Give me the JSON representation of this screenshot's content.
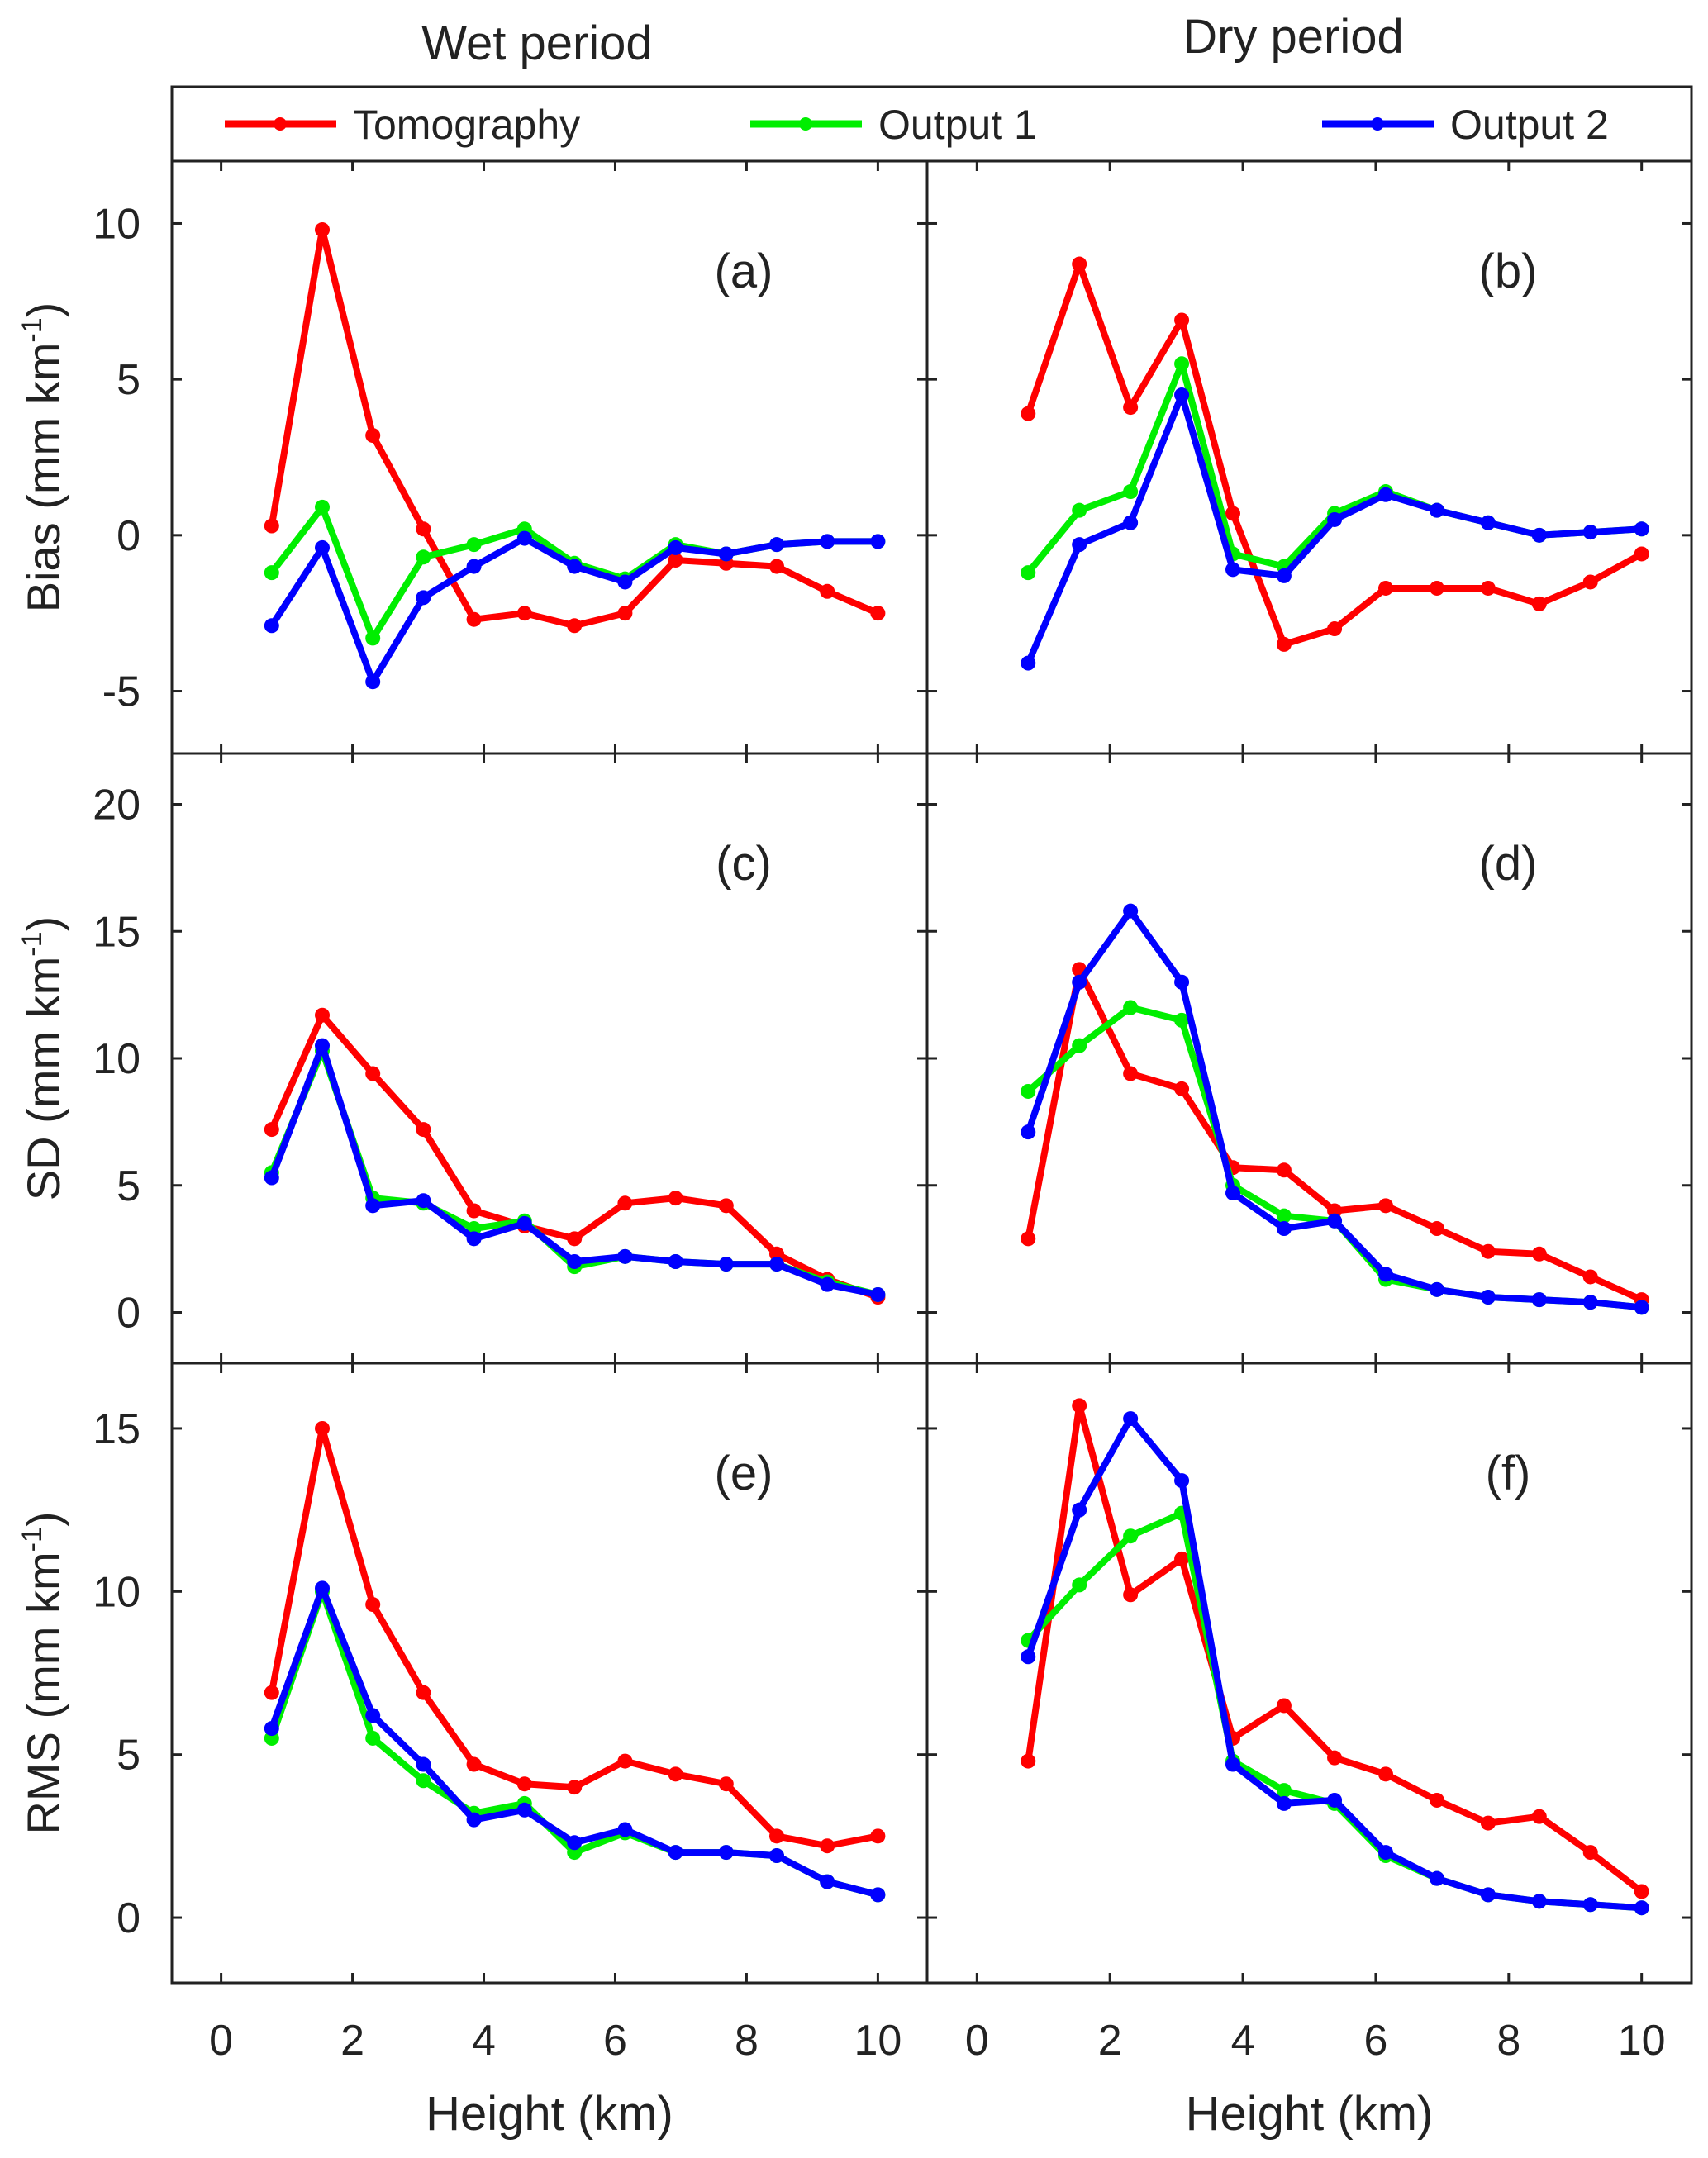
{
  "column_titles": [
    "Wet period",
    "Dry period"
  ],
  "legend": {
    "placement": "top",
    "entries": [
      {
        "name": "Tomography",
        "color": "#ff0000"
      },
      {
        "name": "Output 1",
        "color": "#00ee00"
      },
      {
        "name": "Output 2",
        "color": "#0000ff"
      }
    ]
  },
  "chart_data": [
    {
      "type": "line",
      "panel_label": "(a)",
      "ylabel": "Bias (mm km",
      "ylabel_sup": "-1",
      "ylabel_close": ")",
      "xlabel": "Height (km)",
      "xlim": [
        -0.75,
        10.75
      ],
      "ylim": [
        -7,
        12
      ],
      "xticks": [
        0,
        2,
        4,
        6,
        8,
        10
      ],
      "yticks": [
        -5,
        0,
        5,
        10
      ],
      "x": [
        0.77,
        1.54,
        2.31,
        3.08,
        3.85,
        4.62,
        5.38,
        6.15,
        6.92,
        7.69,
        8.46,
        9.23,
        10
      ],
      "series": [
        {
          "name": "Tomography",
          "values": [
            0.3,
            9.8,
            3.2,
            0.2,
            -2.7,
            -2.5,
            -2.9,
            -2.5,
            -0.8,
            -0.9,
            -1.0,
            -1.8,
            -2.5
          ]
        },
        {
          "name": "Output 1",
          "values": [
            -1.2,
            0.9,
            -3.3,
            -0.7,
            -0.3,
            0.2,
            -0.9,
            -1.4,
            -0.3,
            -0.6,
            -0.3,
            -0.2,
            -0.2
          ]
        },
        {
          "name": "Output 2",
          "values": [
            -2.9,
            -0.4,
            -4.7,
            -2.0,
            -1.0,
            -0.1,
            -1.0,
            -1.5,
            -0.4,
            -0.6,
            -0.3,
            -0.2,
            -0.2
          ]
        }
      ]
    },
    {
      "type": "line",
      "panel_label": "(b)",
      "ylabel": "",
      "xlabel": "Height (km)",
      "xlim": [
        -0.75,
        10.75
      ],
      "ylim": [
        -7,
        12
      ],
      "xticks": [
        0,
        2,
        4,
        6,
        8,
        10
      ],
      "yticks": [
        -5,
        0,
        5,
        10
      ],
      "x": [
        0.77,
        1.54,
        2.31,
        3.08,
        3.85,
        4.62,
        5.38,
        6.15,
        6.92,
        7.69,
        8.46,
        9.23,
        10
      ],
      "series": [
        {
          "name": "Tomography",
          "values": [
            3.9,
            8.7,
            4.1,
            6.9,
            0.7,
            -3.5,
            -3.0,
            -1.7,
            -1.7,
            -1.7,
            -2.2,
            -1.5,
            -0.6
          ]
        },
        {
          "name": "Output 1",
          "values": [
            -1.2,
            0.8,
            1.4,
            5.5,
            -0.6,
            -1.0,
            0.7,
            1.4,
            0.8,
            0.4,
            0.0,
            0.1,
            0.2
          ]
        },
        {
          "name": "Output 2",
          "values": [
            -4.1,
            -0.3,
            0.4,
            4.5,
            -1.1,
            -1.3,
            0.5,
            1.3,
            0.8,
            0.4,
            0.0,
            0.1,
            0.2
          ]
        }
      ]
    },
    {
      "type": "line",
      "panel_label": "(c)",
      "ylabel": "SD (mm km",
      "ylabel_sup": "-1",
      "ylabel_close": ")",
      "xlabel": "Height (km)",
      "xlim": [
        -0.75,
        10.75
      ],
      "ylim": [
        -2,
        22
      ],
      "xticks": [
        0,
        2,
        4,
        6,
        8,
        10
      ],
      "yticks": [
        0,
        5,
        10,
        15,
        20
      ],
      "x": [
        0.77,
        1.54,
        2.31,
        3.08,
        3.85,
        4.62,
        5.38,
        6.15,
        6.92,
        7.69,
        8.46,
        9.23,
        10
      ],
      "series": [
        {
          "name": "Tomography",
          "values": [
            7.2,
            11.7,
            9.4,
            7.2,
            4.0,
            3.4,
            2.9,
            4.3,
            4.5,
            4.2,
            2.3,
            1.3,
            0.6
          ]
        },
        {
          "name": "Output 1",
          "values": [
            5.5,
            10.3,
            4.5,
            4.3,
            3.3,
            3.6,
            1.8,
            2.2,
            2.0,
            1.9,
            1.9,
            1.2,
            0.7
          ]
        },
        {
          "name": "Output 2",
          "values": [
            5.3,
            10.5,
            4.2,
            4.4,
            2.9,
            3.5,
            2.0,
            2.2,
            2.0,
            1.9,
            1.9,
            1.1,
            0.7
          ]
        }
      ]
    },
    {
      "type": "line",
      "panel_label": "(d)",
      "ylabel": "",
      "xlabel": "Height (km)",
      "xlim": [
        -0.75,
        10.75
      ],
      "ylim": [
        -2,
        22
      ],
      "xticks": [
        0,
        2,
        4,
        6,
        8,
        10
      ],
      "yticks": [
        0,
        5,
        10,
        15,
        20
      ],
      "x": [
        0.77,
        1.54,
        2.31,
        3.08,
        3.85,
        4.62,
        5.38,
        6.15,
        6.92,
        7.69,
        8.46,
        9.23,
        10
      ],
      "series": [
        {
          "name": "Tomography",
          "values": [
            2.9,
            13.5,
            9.4,
            8.8,
            5.7,
            5.6,
            4.0,
            4.2,
            3.3,
            2.4,
            2.3,
            1.4,
            0.5
          ]
        },
        {
          "name": "Output 1",
          "values": [
            8.7,
            10.5,
            12.0,
            11.5,
            5.0,
            3.8,
            3.6,
            1.3,
            0.9,
            0.6,
            0.5,
            0.4,
            0.2
          ]
        },
        {
          "name": "Output 2",
          "values": [
            7.1,
            13.0,
            15.8,
            13.0,
            4.7,
            3.3,
            3.6,
            1.5,
            0.9,
            0.6,
            0.5,
            0.4,
            0.2
          ]
        }
      ]
    },
    {
      "type": "line",
      "panel_label": "(e)",
      "ylabel": "RMS (mm km",
      "ylabel_sup": "-1",
      "ylabel_close": ")",
      "xlabel": "Height (km)",
      "xlim": [
        -0.75,
        10.75
      ],
      "ylim": [
        -2,
        17
      ],
      "xticks": [
        0,
        2,
        4,
        6,
        8,
        10
      ],
      "yticks": [
        0,
        5,
        10,
        15
      ],
      "x": [
        0.77,
        1.54,
        2.31,
        3.08,
        3.85,
        4.62,
        5.38,
        6.15,
        6.92,
        7.69,
        8.46,
        9.23,
        10
      ],
      "series": [
        {
          "name": "Tomography",
          "values": [
            6.9,
            15.0,
            9.6,
            6.9,
            4.7,
            4.1,
            4.0,
            4.8,
            4.4,
            4.1,
            2.5,
            2.2,
            2.5
          ]
        },
        {
          "name": "Output 1",
          "values": [
            5.5,
            10.0,
            5.5,
            4.2,
            3.2,
            3.5,
            2.0,
            2.6,
            2.0,
            2.0,
            1.9,
            1.1,
            0.7
          ]
        },
        {
          "name": "Output 2",
          "values": [
            5.8,
            10.1,
            6.2,
            4.7,
            3.0,
            3.3,
            2.3,
            2.7,
            2.0,
            2.0,
            1.9,
            1.1,
            0.7
          ]
        }
      ]
    },
    {
      "type": "line",
      "panel_label": "(f)",
      "ylabel": "",
      "xlabel": "Height (km)",
      "xlim": [
        -0.75,
        10.75
      ],
      "ylim": [
        -2,
        17
      ],
      "xticks": [
        0,
        2,
        4,
        6,
        8,
        10
      ],
      "yticks": [
        0,
        5,
        10,
        15
      ],
      "x": [
        0.77,
        1.54,
        2.31,
        3.08,
        3.85,
        4.62,
        5.38,
        6.15,
        6.92,
        7.69,
        8.46,
        9.23,
        10
      ],
      "series": [
        {
          "name": "Tomography",
          "values": [
            4.8,
            15.7,
            9.9,
            11.0,
            5.5,
            6.5,
            4.9,
            4.4,
            3.6,
            2.9,
            3.1,
            2.0,
            0.8
          ]
        },
        {
          "name": "Output 1",
          "values": [
            8.5,
            10.2,
            11.7,
            12.4,
            4.8,
            3.9,
            3.5,
            1.9,
            1.2,
            0.7,
            0.5,
            0.4,
            0.3
          ]
        },
        {
          "name": "Output 2",
          "values": [
            8.0,
            12.5,
            15.3,
            13.4,
            4.7,
            3.5,
            3.6,
            2.0,
            1.2,
            0.7,
            0.5,
            0.4,
            0.3
          ]
        }
      ]
    }
  ]
}
